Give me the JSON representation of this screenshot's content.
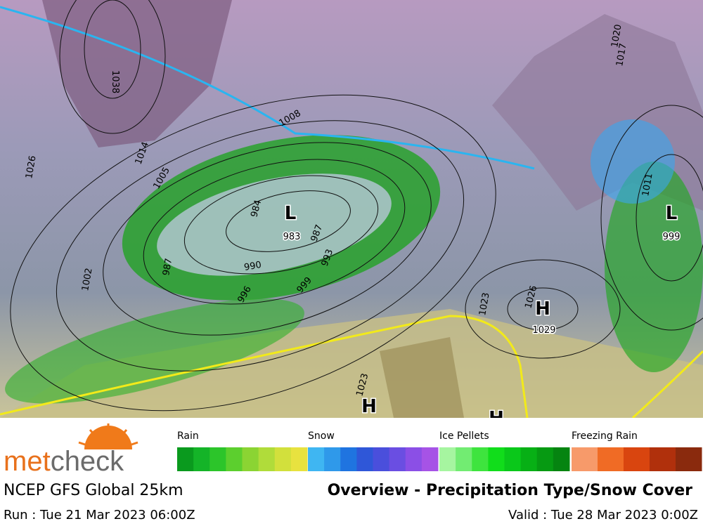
{
  "map": {
    "logo": {
      "part1": "met",
      "part2": "check"
    },
    "pressure_centers": [
      {
        "symbol": "L",
        "value": "983"
      },
      {
        "symbol": "L",
        "value": "999"
      },
      {
        "symbol": "H",
        "value": "1029"
      },
      {
        "symbol": "H"
      },
      {
        "symbol": "H"
      }
    ],
    "isobar_labels": [
      "1038",
      "1026",
      "1014",
      "1005",
      "1008",
      "984",
      "987",
      "990",
      "993",
      "996",
      "999",
      "987",
      "1002",
      "1023",
      "1026",
      "1023",
      "1020",
      "1017",
      "1011"
    ],
    "legend": [
      {
        "name": "Rain",
        "colors": [
          "#0a9a1e",
          "#14b428",
          "#2cc52a",
          "#5ccf2e",
          "#8bd433",
          "#b0dc3a",
          "#d2e03c",
          "#e8e23f"
        ]
      },
      {
        "name": "Snow",
        "colors": [
          "#3fb6f2",
          "#2f99ea",
          "#1f74e0",
          "#2f57d8",
          "#4a4fdc",
          "#6a4ee2",
          "#8b4fe6",
          "#a653e6"
        ]
      },
      {
        "name": "Ice Pellets",
        "colors": [
          "#a6f5a0",
          "#72ec72",
          "#3ee43e",
          "#11dd1b",
          "#0ac81a",
          "#07b015",
          "#069a12",
          "#058410"
        ]
      },
      {
        "name": "Freezing Rain",
        "colors": [
          "#f79a6a",
          "#f06b25",
          "#d9450f",
          "#b0300c",
          "#8a2a0d"
        ]
      }
    ],
    "model": "NCEP GFS Global 25km",
    "product": "Overview - Precipitation Type/Snow Cover",
    "run": "Run : Tue 21 Mar 2023 06:00Z",
    "valid": "Valid : Tue 28 Mar 2023 0:00Z"
  }
}
